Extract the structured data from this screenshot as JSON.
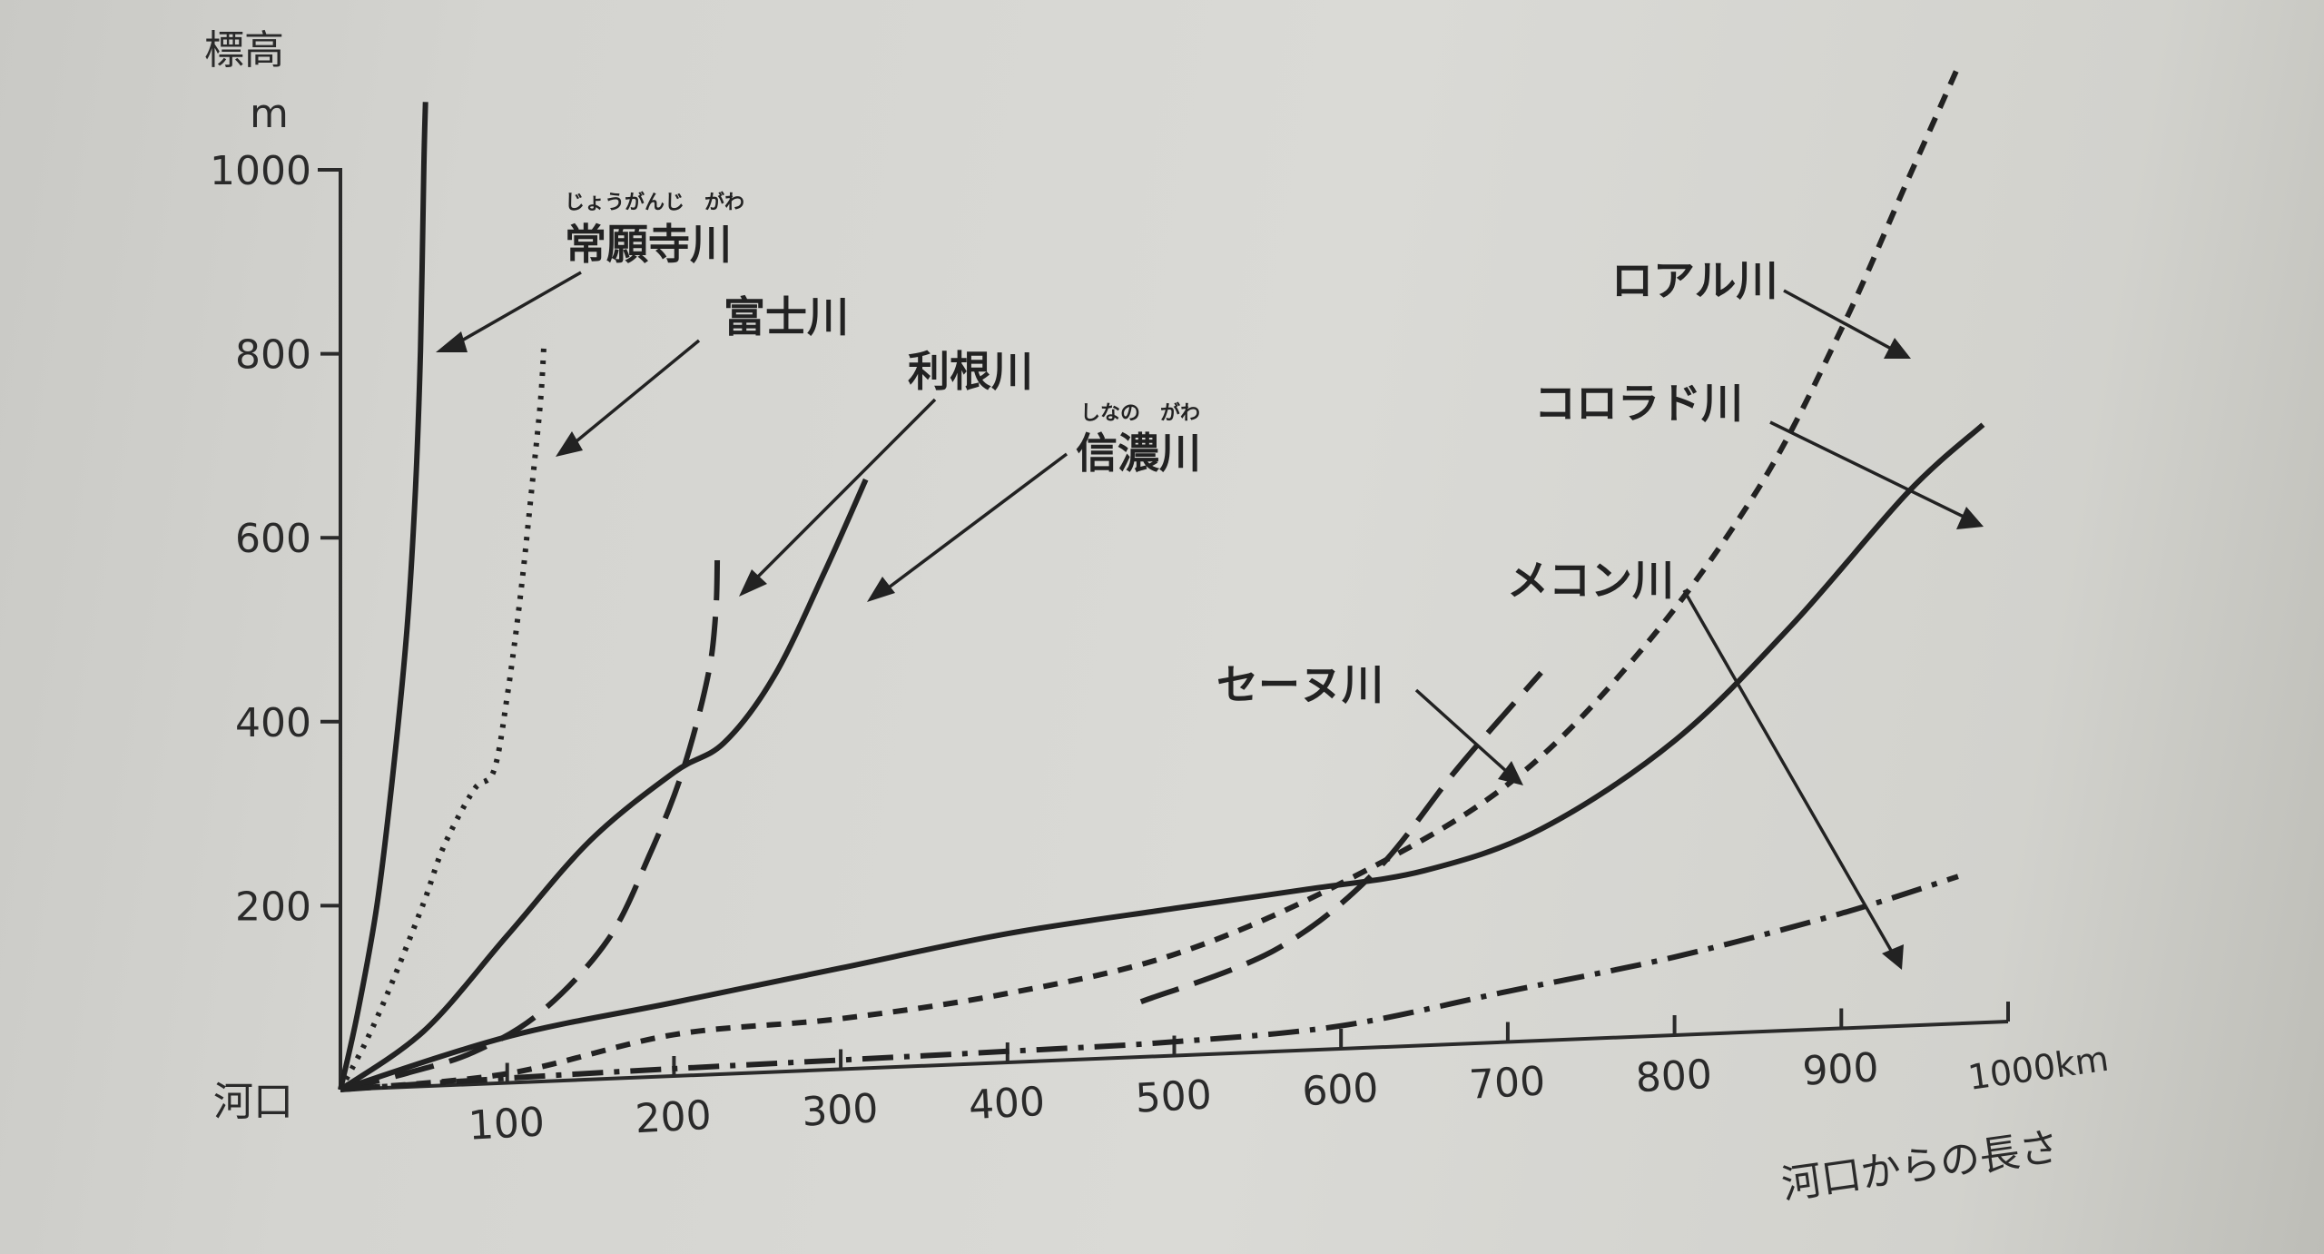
{
  "chart_data": {
    "type": "line",
    "title": "",
    "ylabel": "標高",
    "ylabel_unit": "m",
    "xlabel": "河口からの長さ",
    "origin_label": "河口",
    "xlim": [
      0,
      1000
    ],
    "ylim": [
      0,
      1000
    ],
    "x_ticks": [
      100,
      200,
      300,
      400,
      500,
      600,
      700,
      800,
      900
    ],
    "x_tick_labels": [
      "100",
      "200",
      "300",
      "400",
      "500",
      "600",
      "700",
      "800",
      "900"
    ],
    "x_end_label": "1000km",
    "y_ticks": [
      200,
      400,
      600,
      800,
      1000
    ],
    "y_tick_labels": [
      "200",
      "400",
      "600",
      "800",
      "1000"
    ],
    "grid": false,
    "legend": "none (labels with arrows)",
    "series": [
      {
        "name": "常願寺川",
        "furigana": "じょうがんじ　がわ",
        "style": "solid",
        "points": [
          [
            0,
            0
          ],
          [
            10,
            80
          ],
          [
            22,
            200
          ],
          [
            32,
            350
          ],
          [
            40,
            500
          ],
          [
            45,
            650
          ],
          [
            48,
            800
          ],
          [
            50,
            1000
          ],
          [
            51,
            1070
          ]
        ]
      },
      {
        "name": "富士川",
        "style": "dotted",
        "points": [
          [
            0,
            0
          ],
          [
            15,
            50
          ],
          [
            30,
            110
          ],
          [
            50,
            200
          ],
          [
            62,
            260
          ],
          [
            80,
            320
          ],
          [
            92,
            340
          ],
          [
            100,
            420
          ],
          [
            108,
            530
          ],
          [
            115,
            650
          ],
          [
            120,
            740
          ],
          [
            122,
            800
          ]
        ]
      },
      {
        "name": "利根川",
        "style": "long-dash",
        "points": [
          [
            0,
            0
          ],
          [
            40,
            15
          ],
          [
            80,
            35
          ],
          [
            120,
            75
          ],
          [
            160,
            150
          ],
          [
            185,
            240
          ],
          [
            205,
            330
          ],
          [
            220,
            430
          ],
          [
            225,
            500
          ],
          [
            226,
            570
          ]
        ]
      },
      {
        "name": "信濃川",
        "style": "solid",
        "points": [
          [
            0,
            0
          ],
          [
            50,
            60
          ],
          [
            100,
            160
          ],
          [
            150,
            260
          ],
          [
            200,
            330
          ],
          [
            230,
            360
          ],
          [
            260,
            430
          ],
          [
            290,
            540
          ],
          [
            315,
            640
          ]
        ]
      },
      {
        "name": "セーヌ川",
        "style": "long-dash",
        "points": [
          [
            480,
            60
          ],
          [
            560,
            110
          ],
          [
            620,
            190
          ],
          [
            670,
            300
          ],
          [
            720,
            400
          ]
        ]
      },
      {
        "name": "ロアル川",
        "style": "short-dash",
        "points": [
          [
            0,
            0
          ],
          [
            100,
            10
          ],
          [
            200,
            45
          ],
          [
            300,
            55
          ],
          [
            400,
            75
          ],
          [
            500,
            110
          ],
          [
            600,
            180
          ],
          [
            700,
            280
          ],
          [
            780,
            420
          ],
          [
            850,
            590
          ],
          [
            900,
            760
          ],
          [
            940,
            920
          ],
          [
            970,
            1040
          ]
        ]
      },
      {
        "name": "コロラド川",
        "style": "solid",
        "points": [
          [
            0,
            0
          ],
          [
            100,
            50
          ],
          [
            200,
            80
          ],
          [
            300,
            110
          ],
          [
            400,
            140
          ],
          [
            500,
            160
          ],
          [
            580,
            175
          ],
          [
            650,
            190
          ],
          [
            720,
            230
          ],
          [
            800,
            320
          ],
          [
            870,
            440
          ],
          [
            940,
            580
          ],
          [
            985,
            650
          ]
        ]
      },
      {
        "name": "メコン川",
        "style": "dash-dot",
        "points": [
          [
            0,
            0
          ],
          [
            100,
            5
          ],
          [
            200,
            8
          ],
          [
            300,
            10
          ],
          [
            400,
            12
          ],
          [
            500,
            15
          ],
          [
            600,
            25
          ],
          [
            700,
            55
          ],
          [
            800,
            85
          ],
          [
            900,
            125
          ],
          [
            970,
            160
          ]
        ]
      }
    ]
  },
  "labels": [
    {
      "name": "常願寺川",
      "furigana": "じょうがんじ　がわ"
    },
    {
      "name": "富士川"
    },
    {
      "name": "利根川"
    },
    {
      "name": "信濃川",
      "furigana": "しなの　がわ"
    },
    {
      "name": "ロアル川"
    },
    {
      "name": "コロラド川"
    },
    {
      "name": "メコン川"
    },
    {
      "name": "セーヌ川"
    }
  ]
}
